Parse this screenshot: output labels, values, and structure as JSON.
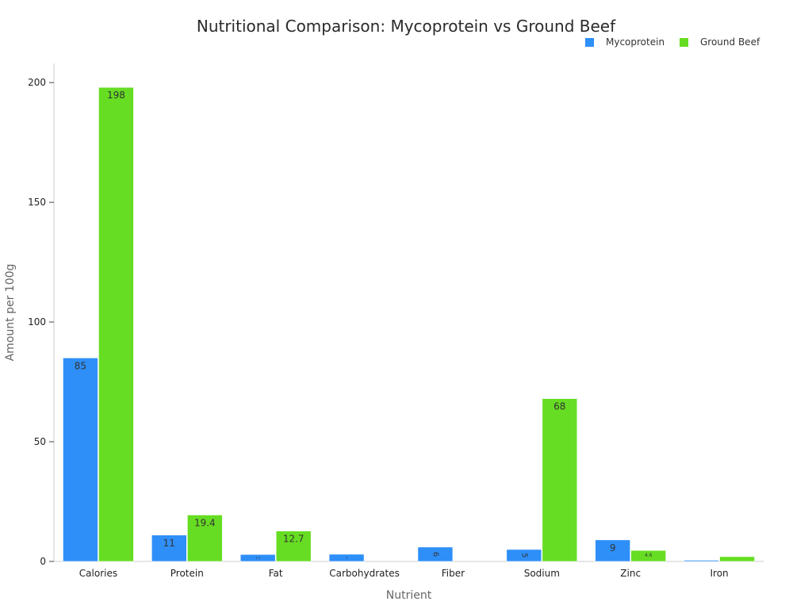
{
  "chart_data": {
    "type": "bar",
    "title": "Nutritional Comparison: Mycoprotein vs Ground Beef",
    "xlabel": "Nutrient",
    "ylabel": "Amount per 100g",
    "categories": [
      "Calories",
      "Protein",
      "Fat",
      "Carbohydrates",
      "Fiber",
      "Sodium",
      "Zinc",
      "Iron"
    ],
    "series": [
      {
        "name": "Mycoprotein",
        "color": "#2E8FF8",
        "values": [
          85,
          11,
          2.9,
          3,
          6,
          5,
          9,
          0.5
        ]
      },
      {
        "name": "Ground Beef",
        "color": "#66DD22",
        "values": [
          198,
          19.4,
          12.7,
          0,
          0,
          68,
          4.6,
          2
        ]
      }
    ],
    "ylim": [
      0,
      208
    ],
    "yticks": [
      0,
      50,
      100,
      150,
      200
    ],
    "grid": false,
    "legend": "top-right",
    "data_labels": "inside"
  }
}
